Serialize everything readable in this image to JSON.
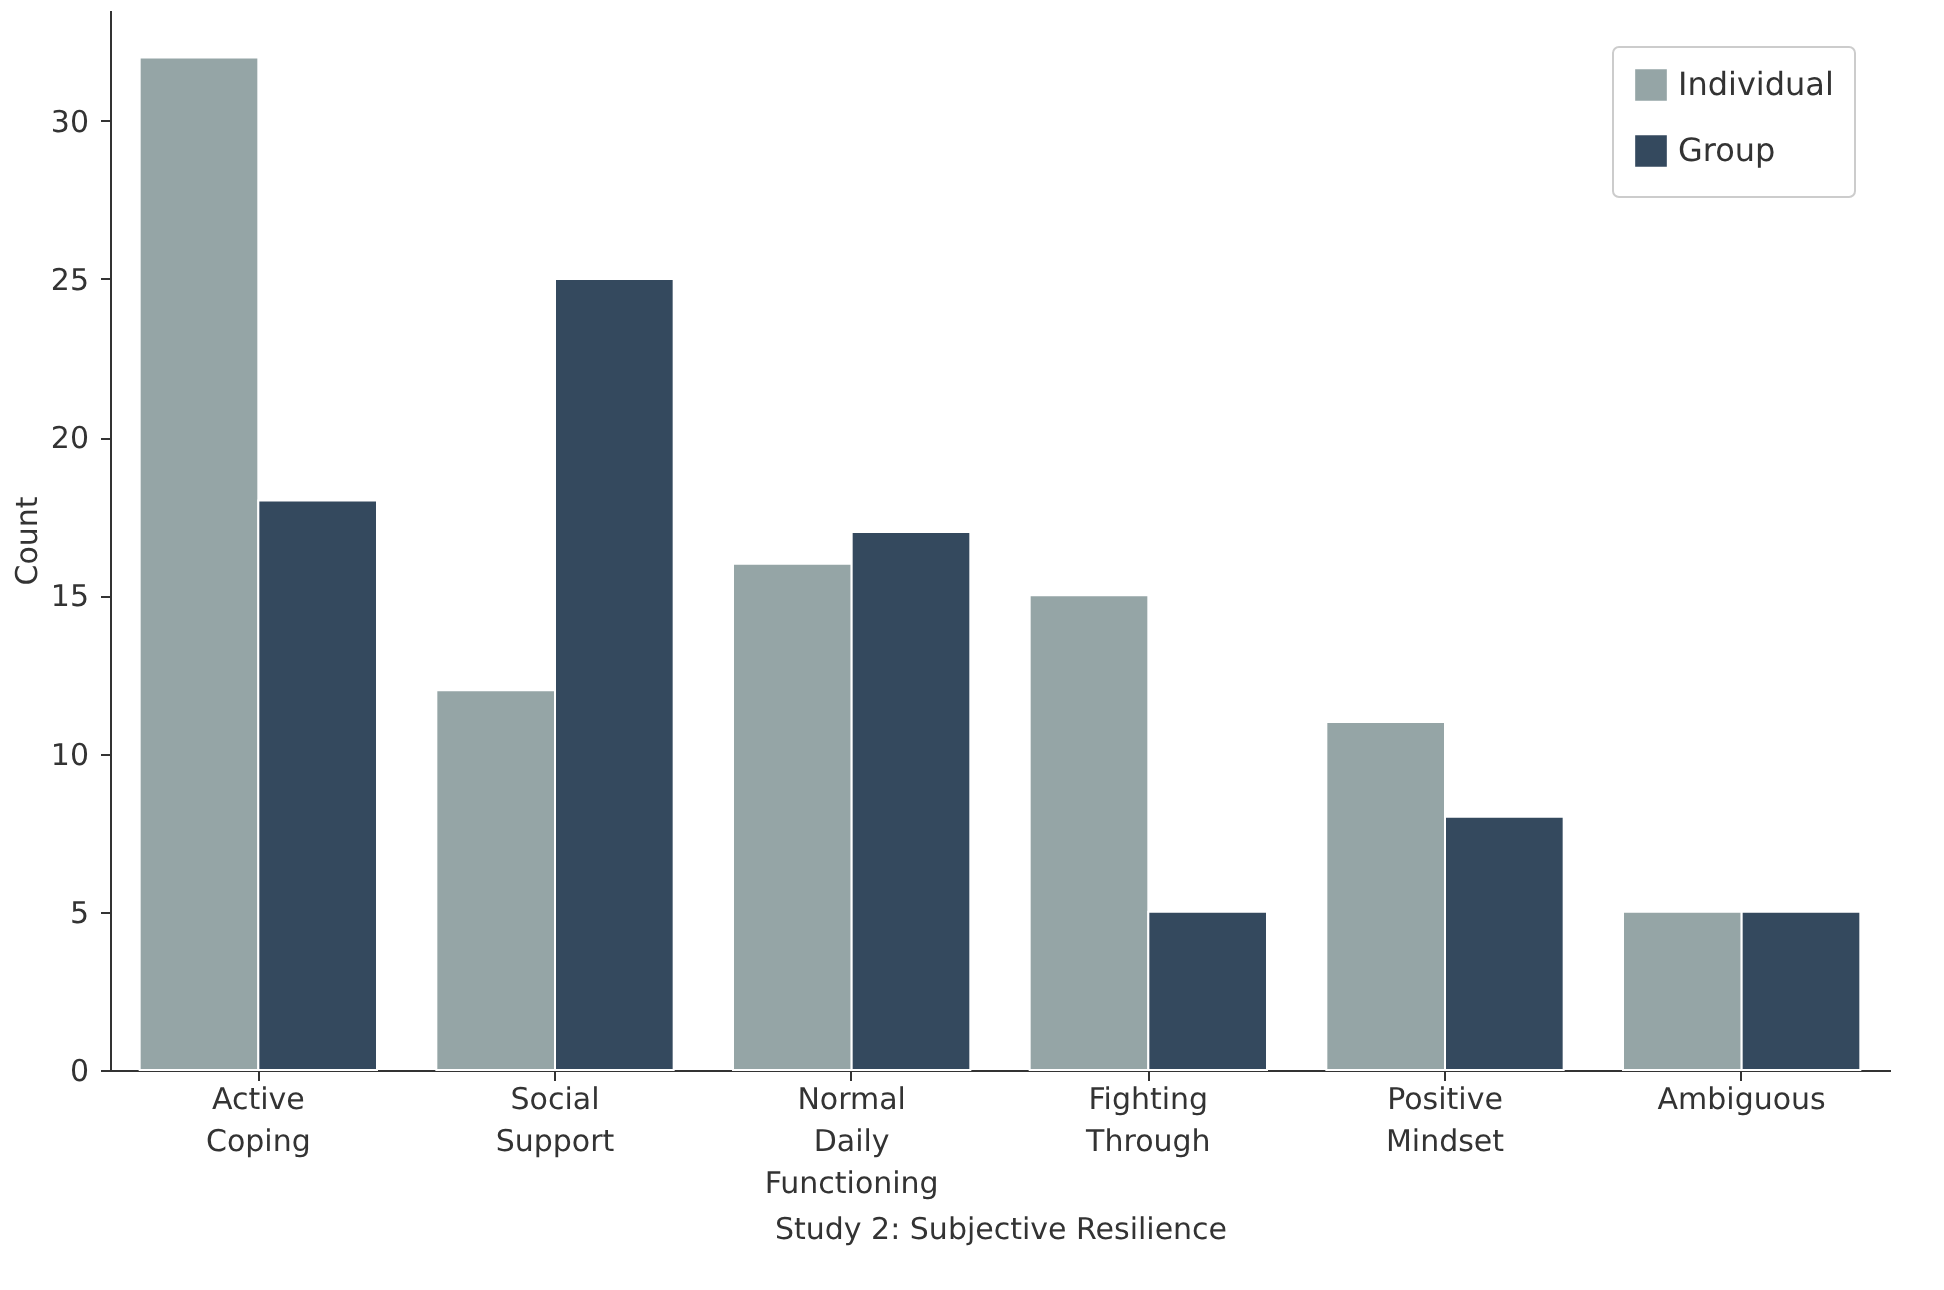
{
  "chart_data": {
    "type": "bar",
    "xlabel": "Study 2: Subjective Resilience",
    "ylabel": "Count",
    "categories": [
      "Active Coping",
      "Social Support",
      "Normal Daily Functioning",
      "Fighting Through",
      "Positive Mindset",
      "Ambiguous"
    ],
    "series": [
      {
        "name": "Individual",
        "color": "#95a5a6",
        "values": [
          32,
          12,
          16,
          15,
          11,
          5
        ]
      },
      {
        "name": "Group",
        "color": "#34495e",
        "values": [
          18,
          25,
          17,
          5,
          8,
          5
        ]
      }
    ],
    "ylim": [
      0,
      33.5
    ],
    "yticks": [
      0,
      5,
      10,
      15,
      20,
      25,
      30
    ],
    "grid": false,
    "legend": "top right"
  }
}
